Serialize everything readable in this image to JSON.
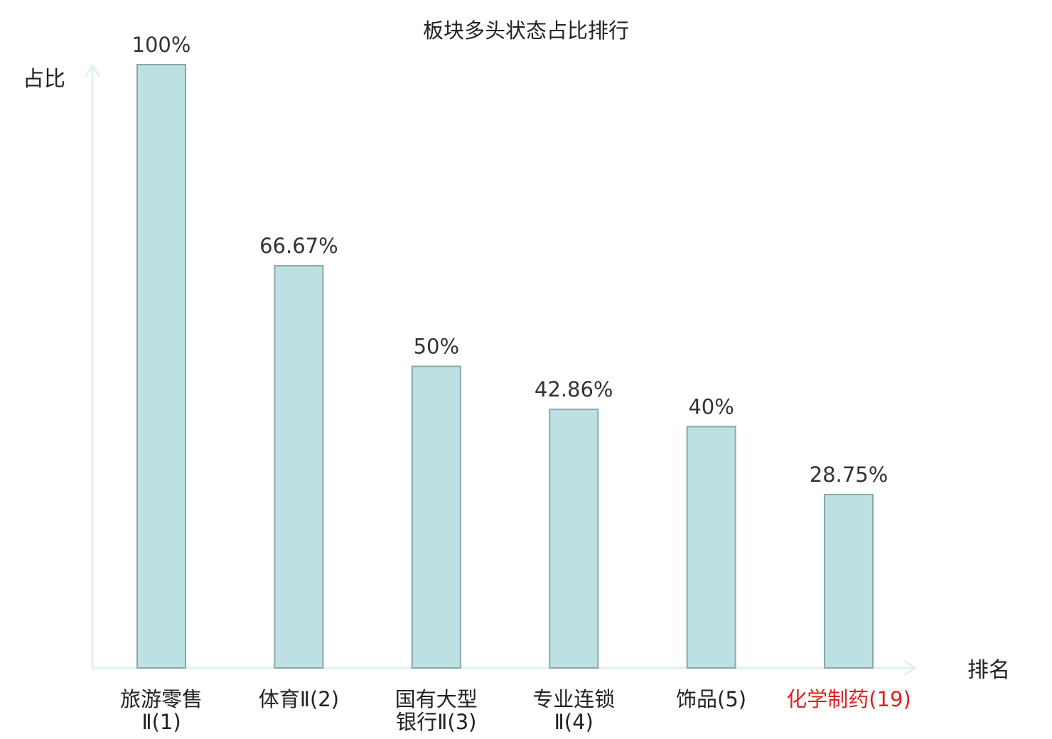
{
  "chart_data": {
    "type": "bar",
    "title": "板块多头状态占比排行",
    "ylabel": "占比",
    "xlabel": "排名",
    "ylim": [
      0,
      100
    ],
    "grid": false,
    "categories": [
      {
        "lines": [
          "旅游零售",
          "Ⅱ(1)"
        ],
        "highlight": false
      },
      {
        "lines": [
          "体育Ⅱ(2)"
        ],
        "highlight": false
      },
      {
        "lines": [
          "国有大型",
          "银行Ⅱ(3)"
        ],
        "highlight": false
      },
      {
        "lines": [
          "专业连锁",
          "Ⅱ(4)"
        ],
        "highlight": false
      },
      {
        "lines": [
          "饰品(5)"
        ],
        "highlight": false
      },
      {
        "lines": [
          "化学制药(19)"
        ],
        "highlight": true
      }
    ],
    "values": [
      100,
      66.67,
      50,
      42.86,
      40,
      28.75
    ],
    "value_labels": [
      "100%",
      "66.67%",
      "50%",
      "42.86%",
      "40%",
      "28.75%"
    ],
    "colors": {
      "bar_fill": "#bde0e2",
      "bar_stroke": "#8aa8ab",
      "axis": "#dff2ef",
      "highlight_text": "#e02020"
    }
  }
}
